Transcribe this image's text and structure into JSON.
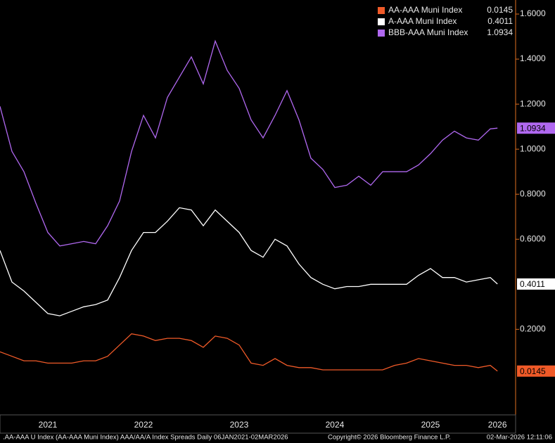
{
  "chart_data": {
    "type": "line",
    "x": [
      2021.0,
      2021.125,
      2021.25,
      2021.375,
      2021.5,
      2021.625,
      2021.75,
      2021.875,
      2022.0,
      2022.125,
      2022.25,
      2022.375,
      2022.5,
      2022.625,
      2022.75,
      2022.875,
      2023.0,
      2023.125,
      2023.25,
      2023.375,
      2023.5,
      2023.625,
      2023.75,
      2023.875,
      2024.0,
      2024.125,
      2024.25,
      2024.375,
      2024.5,
      2024.625,
      2024.75,
      2024.875,
      2025.0,
      2025.125,
      2025.25,
      2025.375,
      2025.5,
      2025.625,
      2025.75,
      2025.875,
      2026.0,
      2026.125,
      2026.2
    ],
    "series": [
      {
        "name": "AA-AAA Muni Index",
        "color": "#f05a28",
        "values": [
          0.1,
          0.08,
          0.06,
          0.06,
          0.05,
          0.05,
          0.05,
          0.06,
          0.06,
          0.08,
          0.13,
          0.18,
          0.17,
          0.15,
          0.16,
          0.16,
          0.15,
          0.12,
          0.17,
          0.16,
          0.13,
          0.05,
          0.04,
          0.07,
          0.04,
          0.03,
          0.03,
          0.02,
          0.02,
          0.02,
          0.02,
          0.02,
          0.02,
          0.04,
          0.05,
          0.07,
          0.06,
          0.05,
          0.04,
          0.04,
          0.03,
          0.04,
          0.0145
        ]
      },
      {
        "name": "A-AAA Muni Index",
        "color": "#ffffff",
        "values": [
          0.55,
          0.41,
          0.37,
          0.32,
          0.27,
          0.26,
          0.28,
          0.3,
          0.31,
          0.33,
          0.43,
          0.55,
          0.63,
          0.63,
          0.68,
          0.74,
          0.73,
          0.66,
          0.73,
          0.68,
          0.63,
          0.55,
          0.52,
          0.6,
          0.57,
          0.49,
          0.43,
          0.4,
          0.38,
          0.39,
          0.39,
          0.4,
          0.4,
          0.4,
          0.4,
          0.44,
          0.47,
          0.43,
          0.43,
          0.41,
          0.42,
          0.43,
          0.4011
        ]
      },
      {
        "name": "BBB-AAA Muni Index",
        "color": "#b068f0",
        "values": [
          1.19,
          0.99,
          0.9,
          0.76,
          0.63,
          0.57,
          0.58,
          0.59,
          0.58,
          0.66,
          0.77,
          0.99,
          1.15,
          1.05,
          1.23,
          1.32,
          1.41,
          1.29,
          1.48,
          1.35,
          1.27,
          1.13,
          1.05,
          1.15,
          1.26,
          1.13,
          0.96,
          0.91,
          0.83,
          0.84,
          0.88,
          0.84,
          0.9,
          0.9,
          0.9,
          0.93,
          0.98,
          1.04,
          1.08,
          1.05,
          1.04,
          1.09,
          1.0934
        ]
      }
    ],
    "xlim": [
      2021.0,
      2026.39
    ],
    "xticks": [
      {
        "value": 2021.5,
        "label": "2021"
      },
      {
        "value": 2022.5,
        "label": "2022"
      },
      {
        "value": 2023.5,
        "label": "2023"
      },
      {
        "value": 2024.5,
        "label": "2024"
      },
      {
        "value": 2025.5,
        "label": "2025"
      },
      {
        "value": 2026.2,
        "label": "2026"
      }
    ],
    "ylim": [
      -0.18,
      1.6625
    ],
    "yticks": [
      {
        "value": 0.2,
        "label": "0.2000"
      },
      {
        "value": 0.6,
        "label": "0.6000"
      },
      {
        "value": 0.8,
        "label": "0.8000"
      },
      {
        "value": 1.0,
        "label": "1.0000"
      },
      {
        "value": 1.2,
        "label": "1.2000"
      },
      {
        "value": 1.4,
        "label": "1.4000"
      },
      {
        "value": 1.6,
        "label": "1.6000"
      }
    ],
    "grid": false
  },
  "footer": {
    "source": ".AA-AAA U Index (AA-AAA Muni Index) AAA/AA/A Index Spreads Daily 06JAN2021-02MAR2026",
    "copyright": "Copyright© 2026 Bloomberg Finance L.P.",
    "timestamp": "02-Mar-2026 12:11:06"
  }
}
